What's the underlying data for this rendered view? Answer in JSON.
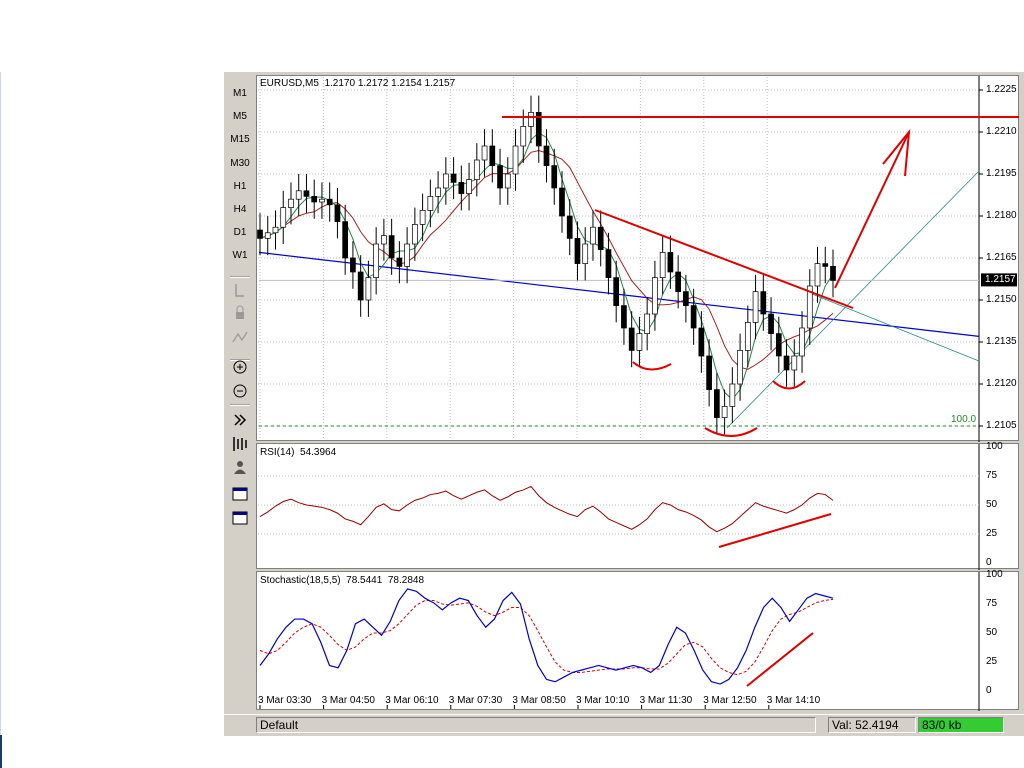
{
  "timeframes": [
    "M1",
    "M5",
    "M15",
    "M30",
    "H1",
    "H4",
    "D1",
    "W1"
  ],
  "tool_icons": [
    "cursor-tool-icon",
    "lock-icon",
    "pen-icon",
    "zoom-in-icon",
    "zoom-out-icon",
    "scroll-right-icon",
    "bar-chart-icon",
    "person-icon",
    "window-icon",
    "window-icon"
  ],
  "main_chart": {
    "label": "EURUSD,M5  1.2170 1.2172 1.2154 1.2157",
    "y_ticks": [
      "1.2225",
      "1.2210",
      "1.2195",
      "1.2180",
      "1.2165",
      "1.2150",
      "1.2135",
      "1.2120",
      "1.2105"
    ],
    "current_price": "1.2157",
    "fib_label": "100.0"
  },
  "rsi_panel": {
    "label": "RSI(14)  54.3964",
    "y_ticks": [
      "100",
      "75",
      "50",
      "25",
      "0"
    ]
  },
  "stoch_panel": {
    "label": "Stochastic(18,5,5)  78.5441  78.2848",
    "y_ticks": [
      "100",
      "75",
      "50",
      "25",
      "0"
    ]
  },
  "x_axis": [
    "3 Mar 03:30",
    "3 Mar 04:50",
    "3 Mar 06:10",
    "3 Mar 07:30",
    "3 Mar 08:50",
    "3 Mar 10:10",
    "3 Mar 11:30",
    "3 Mar 12:50",
    "3 Mar 14:10"
  ],
  "status": {
    "profile": "Default",
    "value": "Val: 52.4194",
    "traffic": "83/0 kb",
    "traffic_color": "#33cc33"
  },
  "chart_data": [
    {
      "type": "candlestick",
      "symbol": "EURUSD",
      "timeframe": "M5",
      "ohlc_last": {
        "open": 1.217,
        "high": 1.2172,
        "low": 1.2154,
        "close": 1.2157
      },
      "ylim": [
        1.21,
        1.223
      ],
      "close_series": [
        1.2172,
        1.2174,
        1.2176,
        1.2183,
        1.2186,
        1.2189,
        1.2187,
        1.2185,
        1.2186,
        1.2184,
        1.2178,
        1.2165,
        1.216,
        1.215,
        1.2158,
        1.217,
        1.2173,
        1.2165,
        1.2162,
        1.217,
        1.2177,
        1.2182,
        1.2187,
        1.219,
        1.2195,
        1.2192,
        1.2188,
        1.2193,
        1.22,
        1.2205,
        1.2198,
        1.219,
        1.2195,
        1.2205,
        1.2212,
        1.2217,
        1.2205,
        1.2198,
        1.219,
        1.218,
        1.2172,
        1.2163,
        1.217,
        1.2176,
        1.2168,
        1.2158,
        1.2148,
        1.214,
        1.2132,
        1.2138,
        1.2145,
        1.2158,
        1.2167,
        1.216,
        1.2153,
        1.2148,
        1.214,
        1.213,
        1.2118,
        1.2108,
        1.2112,
        1.212,
        1.2132,
        1.2142,
        1.2153,
        1.2145,
        1.2138,
        1.213,
        1.2125,
        1.213,
        1.214,
        1.2155,
        1.2163,
        1.2162,
        1.2157
      ],
      "indicators": [
        "moving average (red)",
        "moving average (green)"
      ]
    },
    {
      "type": "line",
      "name": "RSI(14)",
      "value": 54.3964,
      "ylim": [
        0,
        100
      ],
      "values": [
        40,
        44,
        49,
        53,
        55,
        52,
        50,
        49,
        48,
        46,
        43,
        38,
        36,
        33,
        40,
        48,
        51,
        46,
        45,
        50,
        54,
        56,
        59,
        60,
        62,
        58,
        55,
        58,
        61,
        63,
        58,
        54,
        57,
        61,
        63,
        66,
        58,
        52,
        48,
        45,
        42,
        40,
        46,
        49,
        44,
        38,
        35,
        32,
        29,
        33,
        38,
        46,
        52,
        50,
        46,
        44,
        41,
        37,
        31,
        27,
        30,
        34,
        40,
        46,
        52,
        49,
        47,
        45,
        43,
        46,
        50,
        56,
        60,
        59,
        54
      ]
    },
    {
      "type": "line",
      "name": "Stochastic(18,5,5)",
      "main": 78.5441,
      "signal": 78.2848,
      "ylim": [
        0,
        100
      ],
      "main_values": [
        22,
        32,
        45,
        55,
        62,
        62,
        58,
        42,
        22,
        20,
        35,
        58,
        62,
        55,
        48,
        60,
        78,
        88,
        86,
        80,
        76,
        70,
        76,
        80,
        78,
        65,
        55,
        62,
        78,
        85,
        75,
        45,
        22,
        10,
        8,
        12,
        16,
        18,
        20,
        22,
        20,
        18,
        20,
        22,
        20,
        16,
        22,
        40,
        55,
        50,
        35,
        18,
        8,
        6,
        10,
        20,
        35,
        55,
        72,
        80,
        72,
        60,
        70,
        80,
        84,
        82,
        80
      ],
      "signal_values": [
        35,
        32,
        35,
        42,
        50,
        55,
        58,
        55,
        48,
        40,
        35,
        38,
        45,
        50,
        50,
        52,
        58,
        66,
        74,
        78,
        78,
        75,
        74,
        75,
        76,
        73,
        68,
        65,
        68,
        72,
        72,
        65,
        52,
        38,
        25,
        18,
        16,
        16,
        17,
        18,
        19,
        19,
        19,
        20,
        20,
        19,
        19,
        24,
        32,
        40,
        42,
        38,
        28,
        20,
        16,
        14,
        17,
        25,
        38,
        52,
        62,
        66,
        68,
        72,
        76,
        78,
        79
      ]
    }
  ]
}
